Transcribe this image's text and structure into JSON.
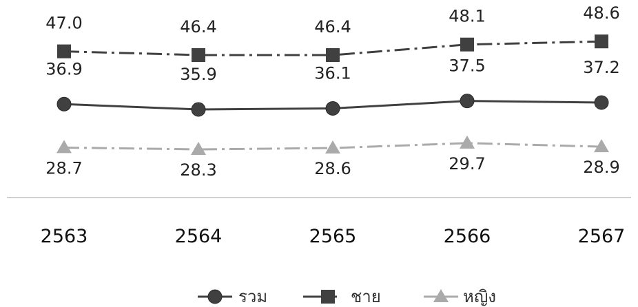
{
  "chart_data": {
    "type": "line",
    "categories": [
      "2563",
      "2564",
      "2565",
      "2566",
      "2567"
    ],
    "series": [
      {
        "name": "ชาย",
        "values": [
          47.0,
          46.4,
          46.4,
          48.1,
          48.6
        ],
        "color": "#404040",
        "marker": "square",
        "line": "dash-dot"
      },
      {
        "name": "รวม",
        "values": [
          36.9,
          35.9,
          36.1,
          37.5,
          37.2
        ],
        "color": "#404040",
        "marker": "circle",
        "line": "solid"
      },
      {
        "name": "หญิง",
        "values": [
          28.7,
          28.3,
          28.6,
          29.7,
          28.9
        ],
        "color": "#aaaaaa",
        "marker": "triangle",
        "line": "dash-dot"
      }
    ],
    "labels": [
      [
        "47.0",
        "46.4",
        "46.4",
        "48.1",
        "48.6"
      ],
      [
        "36.9",
        "35.9",
        "36.1",
        "37.5",
        "37.2"
      ],
      [
        "28.7",
        "28.3",
        "28.6",
        "29.7",
        "28.9"
      ]
    ],
    "legend": [
      "รวม",
      "ชาย",
      "หญิง"
    ],
    "legend_position": "bottom",
    "grid": false,
    "title": "",
    "xlabel": "",
    "ylabel": ""
  }
}
